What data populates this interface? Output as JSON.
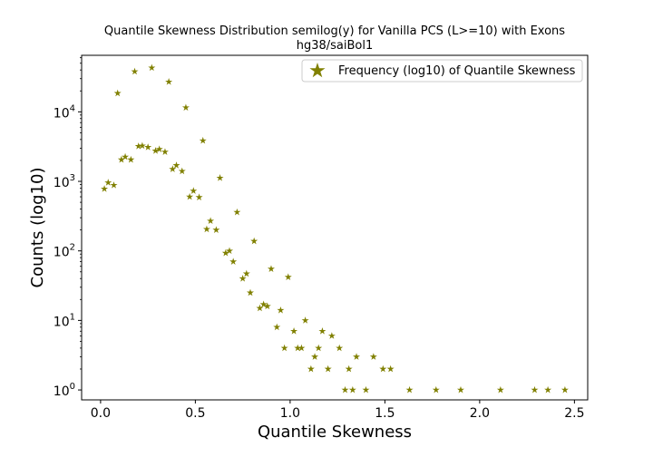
{
  "chart_data": {
    "type": "scatter",
    "title": "Quantile Skewness Distribution semilog(y) for Vanilla PCS (L>=10) with Exons",
    "subtitle": "hg38/saiBol1",
    "xlabel": "Quantile Skewness",
    "ylabel": "Counts (log10)",
    "xlim": [
      -0.1,
      2.57
    ],
    "ylim": [
      0.72,
      65000
    ],
    "yscale": "log",
    "grid": false,
    "legend_placement": "top-right",
    "marker": "star",
    "color": "#808000",
    "x_ticks": [
      {
        "value": 0.0,
        "label": "0.0"
      },
      {
        "value": 0.5,
        "label": "0.5"
      },
      {
        "value": 1.0,
        "label": "1.0"
      },
      {
        "value": 1.5,
        "label": "1.5"
      },
      {
        "value": 2.0,
        "label": "2.0"
      },
      {
        "value": 2.5,
        "label": "2.5"
      }
    ],
    "y_ticks": [
      {
        "value": 1,
        "base": "10",
        "exp": "0"
      },
      {
        "value": 10,
        "base": "10",
        "exp": "1"
      },
      {
        "value": 100,
        "base": "10",
        "exp": "2"
      },
      {
        "value": 1000,
        "base": "10",
        "exp": "3"
      },
      {
        "value": 10000,
        "base": "10",
        "exp": "4"
      }
    ],
    "series": [
      {
        "name": "Frequency (log10) of Quantile Skewness",
        "points": [
          [
            0.02,
            780
          ],
          [
            0.04,
            960
          ],
          [
            0.07,
            880
          ],
          [
            0.09,
            18500
          ],
          [
            0.11,
            2050
          ],
          [
            0.13,
            2250
          ],
          [
            0.16,
            2050
          ],
          [
            0.18,
            38000
          ],
          [
            0.2,
            3200
          ],
          [
            0.22,
            3250
          ],
          [
            0.25,
            3100
          ],
          [
            0.27,
            43000
          ],
          [
            0.29,
            2750
          ],
          [
            0.31,
            2900
          ],
          [
            0.34,
            2650
          ],
          [
            0.36,
            27000
          ],
          [
            0.38,
            1500
          ],
          [
            0.4,
            1700
          ],
          [
            0.43,
            1400
          ],
          [
            0.45,
            11500
          ],
          [
            0.47,
            600
          ],
          [
            0.49,
            730
          ],
          [
            0.52,
            590
          ],
          [
            0.54,
            3850
          ],
          [
            0.56,
            205
          ],
          [
            0.58,
            270
          ],
          [
            0.61,
            200
          ],
          [
            0.63,
            1120
          ],
          [
            0.66,
            93
          ],
          [
            0.68,
            100
          ],
          [
            0.7,
            70
          ],
          [
            0.72,
            360
          ],
          [
            0.75,
            40
          ],
          [
            0.77,
            47
          ],
          [
            0.79,
            25
          ],
          [
            0.81,
            138
          ],
          [
            0.84,
            15
          ],
          [
            0.86,
            17
          ],
          [
            0.88,
            16
          ],
          [
            0.9,
            55
          ],
          [
            0.93,
            8
          ],
          [
            0.95,
            14
          ],
          [
            0.97,
            4
          ],
          [
            0.99,
            42
          ],
          [
            1.02,
            7
          ],
          [
            1.04,
            4
          ],
          [
            1.06,
            4
          ],
          [
            1.08,
            10
          ],
          [
            1.11,
            2
          ],
          [
            1.13,
            3
          ],
          [
            1.15,
            4
          ],
          [
            1.17,
            7
          ],
          [
            1.2,
            2
          ],
          [
            1.22,
            6
          ],
          [
            1.26,
            4
          ],
          [
            1.29,
            1
          ],
          [
            1.31,
            2
          ],
          [
            1.33,
            1
          ],
          [
            1.35,
            3
          ],
          [
            1.4,
            1
          ],
          [
            1.44,
            3
          ],
          [
            1.49,
            2
          ],
          [
            1.53,
            2
          ],
          [
            1.63,
            1
          ],
          [
            1.77,
            1
          ],
          [
            1.9,
            1
          ],
          [
            2.11,
            1
          ],
          [
            2.29,
            1
          ],
          [
            2.36,
            1
          ],
          [
            2.45,
            1
          ]
        ]
      }
    ]
  }
}
